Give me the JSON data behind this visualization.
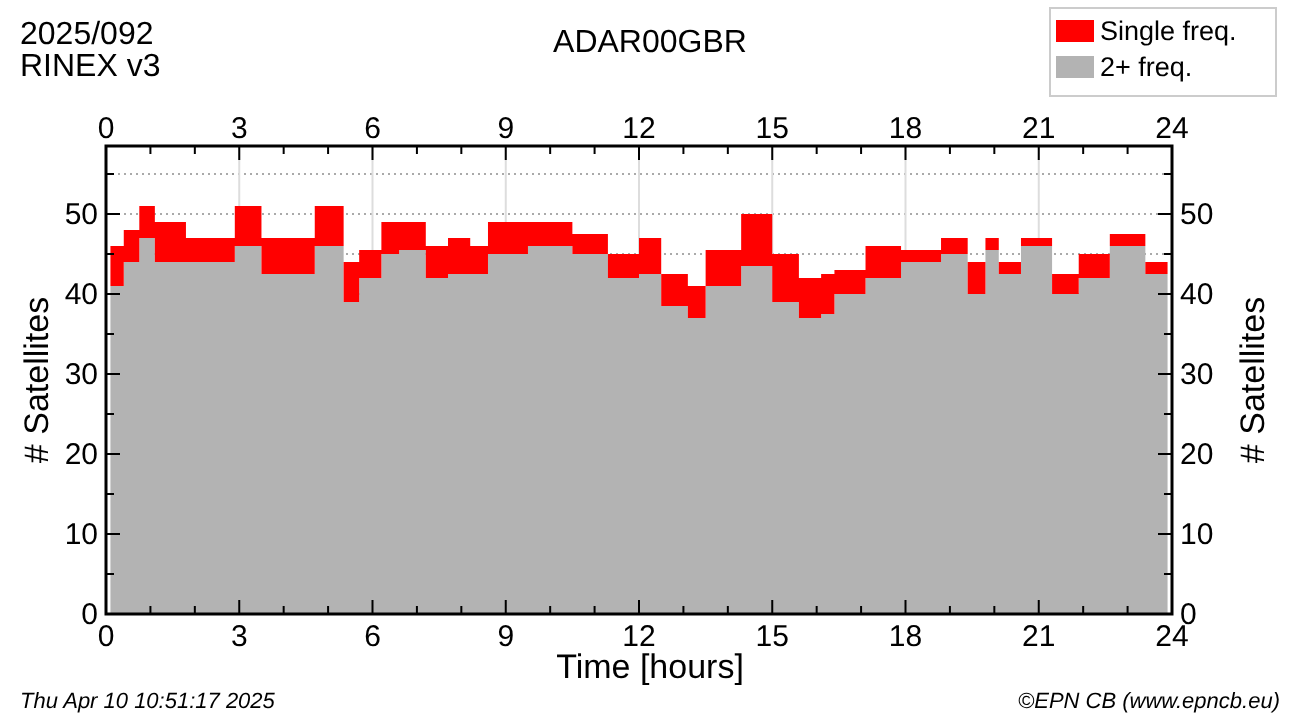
{
  "chart_data": {
    "type": "area",
    "stacked": true,
    "title": "ADAR00GBR",
    "xlabel": "Time [hours]",
    "ylabel": "# Satellites",
    "y2label": "# Satellites",
    "annotations": [
      "2025/092",
      "RINEX v3",
      "Thu Apr 10 10:51:17 2025",
      "©EPN CB (www.epncb.eu)"
    ],
    "x": [
      0.1,
      0.4,
      0.75,
      1.1,
      1.8,
      2.4,
      2.9,
      3.5,
      4.2,
      4.7,
      5.35,
      5.7,
      6.2,
      6.6,
      7.2,
      7.7,
      8.2,
      8.6,
      9.5,
      10.5,
      11.3,
      12.0,
      12.5,
      13.1,
      13.5,
      14.3,
      15.0,
      15.6,
      16.1,
      16.4,
      17.1,
      17.9,
      18.8,
      19.4,
      19.8,
      20.1,
      20.6,
      21.3,
      21.9,
      22.6,
      23.4,
      23.9
    ],
    "series": [
      {
        "name": "2+ freq.",
        "color": "#b3b3b3",
        "values": [
          41,
          44,
          47,
          44,
          44,
          44,
          46,
          42.5,
          42.5,
          46,
          39,
          42,
          45,
          45.5,
          42,
          42.5,
          42.5,
          45,
          46,
          45,
          42,
          42.5,
          38.5,
          37,
          41,
          43.5,
          39,
          37,
          37.5,
          40,
          42,
          44,
          45,
          40,
          45.5,
          42.5,
          46,
          40,
          42,
          46,
          42.5,
          43
        ]
      },
      {
        "name": "Single freq.",
        "color": "#ff0000",
        "values": [
          5,
          4,
          4,
          5,
          3,
          3,
          5,
          4.5,
          4.5,
          5,
          5,
          3.5,
          4,
          3.5,
          4,
          4.5,
          3.5,
          4,
          3,
          2.5,
          3,
          4.5,
          4,
          4,
          4.5,
          6.5,
          6,
          5,
          5,
          3,
          4,
          1.5,
          2,
          4,
          1.5,
          1.5,
          1,
          2.5,
          3,
          1.5,
          1.5,
          2
        ]
      }
    ],
    "xlim": [
      0,
      24
    ],
    "x2lim": [
      0,
      24
    ],
    "xticks": [
      0,
      {
        "value": 1,
        "label": null
      },
      {
        "value": 2,
        "label": null
      },
      3,
      {
        "value": 4,
        "label": null
      },
      {
        "value": 5,
        "label": null
      },
      6,
      {
        "value": 7,
        "label": null
      },
      {
        "value": 8,
        "label": null
      },
      9,
      {
        "value": 10,
        "label": null
      },
      {
        "value": 11,
        "label": null
      },
      12,
      {
        "value": 13,
        "label": null
      },
      {
        "value": 14,
        "label": null
      },
      15,
      {
        "value": 16,
        "label": null
      },
      {
        "value": 17,
        "label": null
      },
      18,
      {
        "value": 19,
        "label": null
      },
      {
        "value": 20,
        "label": null
      },
      21,
      {
        "value": 22,
        "label": null
      },
      {
        "value": 23,
        "label": null
      },
      24
    ],
    "x2ticks": [
      0,
      {
        "value": 1,
        "label": null
      },
      {
        "value": 2,
        "label": null
      },
      3,
      {
        "value": 4,
        "label": null
      },
      {
        "value": 5,
        "label": null
      },
      6,
      {
        "value": 7,
        "label": null
      },
      {
        "value": 8,
        "label": null
      },
      9,
      {
        "value": 10,
        "label": null
      },
      {
        "value": 11,
        "label": null
      },
      12,
      {
        "value": 13,
        "label": null
      },
      {
        "value": 14,
        "label": null
      },
      15,
      {
        "value": 16,
        "label": null
      },
      {
        "value": 17,
        "label": null
      },
      18,
      {
        "value": 19,
        "label": null
      },
      {
        "value": 20,
        "label": null
      },
      21,
      {
        "value": 22,
        "label": null
      },
      {
        "value": 23,
        "label": null
      },
      24
    ],
    "ylim": [
      0,
      58.5
    ],
    "y2lim": [
      0,
      58.5
    ],
    "yticks": [
      0,
      {
        "value": 5,
        "label": null
      },
      10,
      {
        "value": 15,
        "label": null
      },
      20,
      {
        "value": 25,
        "label": null
      },
      30,
      {
        "value": 35,
        "label": null
      },
      40,
      {
        "value": 45,
        "label": null
      },
      50,
      {
        "value": 55,
        "label": null
      }
    ],
    "y2ticks": [
      0,
      {
        "value": 5,
        "label": null
      },
      10,
      {
        "value": 15,
        "label": null
      },
      20,
      {
        "value": 25,
        "label": null
      },
      30,
      {
        "value": 35,
        "label": null
      },
      40,
      {
        "value": 45,
        "label": null
      },
      50,
      {
        "value": 55,
        "label": null
      }
    ],
    "grid": true,
    "legend": "top right"
  }
}
